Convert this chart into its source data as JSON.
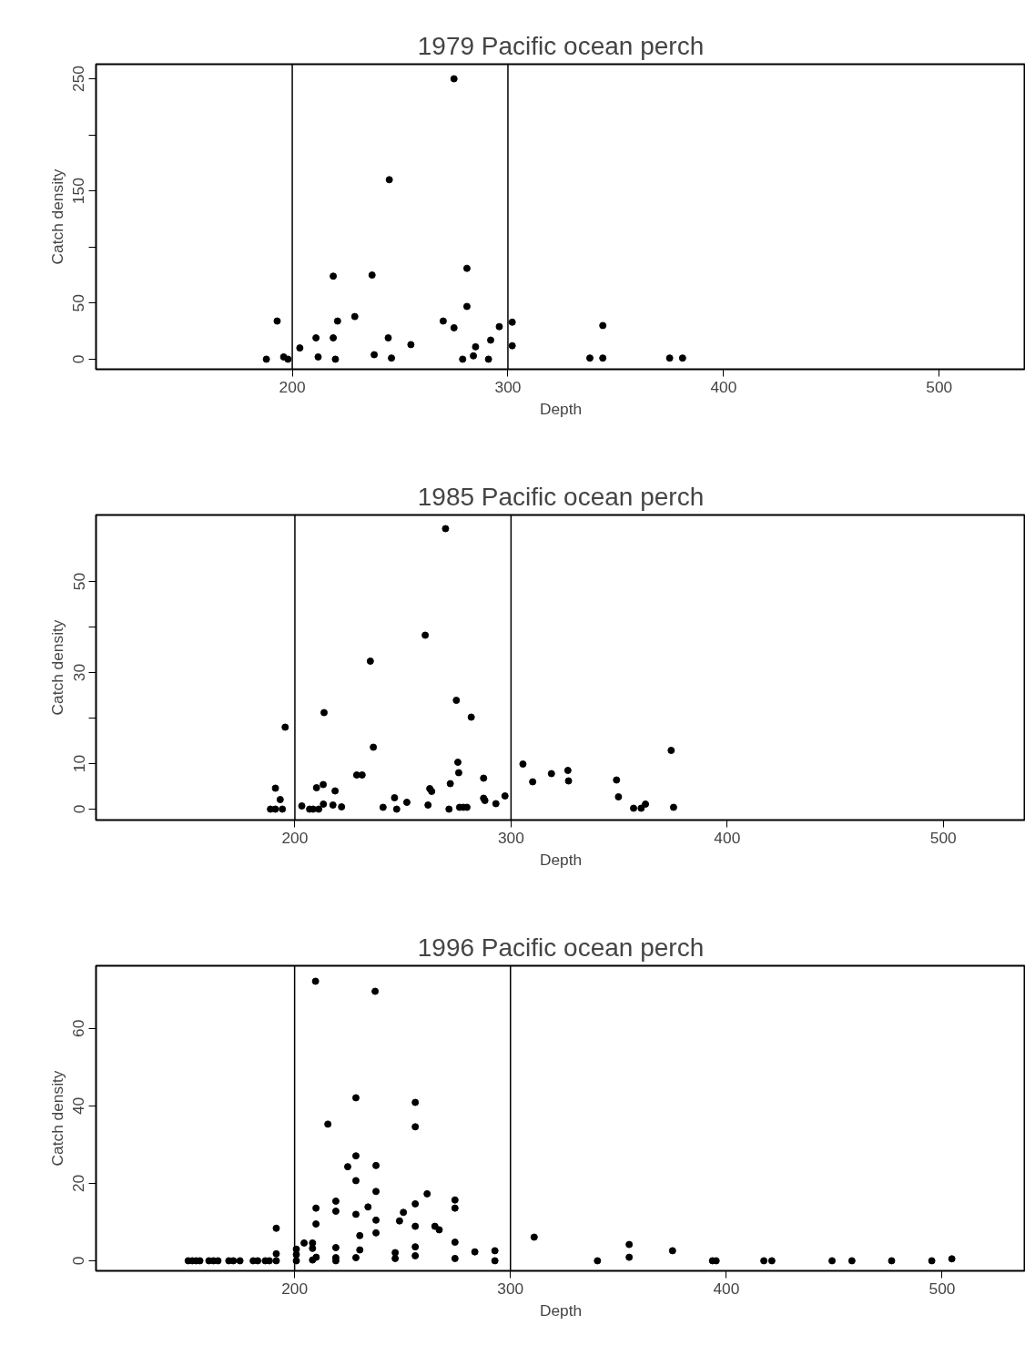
{
  "chart_data": [
    {
      "type": "scatter",
      "title": "1979 Pacific ocean perch",
      "xlabel": "Depth",
      "ylabel": "Catch density",
      "marker": "circle",
      "grid": false,
      "xlim": [
        109,
        540
      ],
      "ylim": [
        -9,
        263
      ],
      "xticks": [
        200,
        300,
        400,
        500
      ],
      "yticks": [
        0,
        50,
        {
          "value": 100,
          "label": null
        },
        150,
        {
          "value": 200,
          "label": null
        },
        250
      ],
      "ref_lines": [
        {
          "axis": "x",
          "value": 200,
          "color": "#000000"
        },
        {
          "axis": "x",
          "value": 300,
          "color": "#000000"
        }
      ],
      "series": [
        {
          "color": "#000000",
          "x": [
            188,
            193,
            196,
            198,
            203.5,
            211,
            212,
            219,
            219,
            220,
            221,
            229,
            237,
            238,
            244.5,
            245,
            246,
            255,
            270,
            275,
            275,
            279,
            281,
            281,
            284,
            285,
            291,
            292,
            296,
            302,
            302,
            338,
            344,
            344,
            375,
            381
          ],
          "values": [
            0,
            34,
            2,
            0,
            10,
            19,
            2,
            74,
            19,
            0,
            34,
            38,
            75,
            4,
            19,
            160,
            1,
            13,
            34,
            250,
            28,
            0,
            81,
            47,
            3,
            11,
            0,
            17,
            29,
            33,
            12,
            1,
            1,
            30,
            1,
            1
          ]
        }
      ]
    },
    {
      "type": "scatter",
      "title": "1985 Pacific ocean perch",
      "xlabel": "Depth",
      "ylabel": "Catch density",
      "marker": "circle",
      "grid": false,
      "xlim": [
        108,
        538
      ],
      "ylim": [
        -2.4,
        64.6
      ],
      "xticks": [
        200,
        300,
        400,
        500
      ],
      "yticks": [
        0,
        10,
        {
          "value": 20,
          "label": null
        },
        30,
        {
          "value": 40,
          "label": null
        },
        50
      ],
      "ref_lines": [
        {
          "axis": "x",
          "value": 200,
          "color": "#000000"
        },
        {
          "axis": "x",
          "value": 300,
          "color": "#000000"
        }
      ],
      "series": [
        {
          "color": "#000000",
          "x": [
            188.7,
            191,
            194.2,
            193.2,
            191,
            195.5,
            203.2,
            206.8,
            208.4,
            211,
            210,
            213.1,
            213.5,
            213.2,
            217.6,
            218.6,
            221.6,
            228.6,
            231.1,
            234.9,
            236.3,
            240.8,
            246.1,
            247.1,
            251.8,
            260.3,
            261.6,
            262.4,
            263.3,
            269.7,
            271.9,
            271.3,
            274.7,
            275.4,
            275.8,
            276.2,
            278,
            279.6,
            281.6,
            287.3,
            287.3,
            287.9,
            293,
            297.2,
            305.5,
            310,
            318.7,
            326.3,
            326.6,
            348.8,
            349.7,
            356.7,
            360.2,
            362.2,
            374.1,
            375.2
          ],
          "values": [
            0,
            0,
            0,
            2.1,
            4.6,
            18,
            0.7,
            0,
            0,
            0,
            4.7,
            5.4,
            21.2,
            1.1,
            0.9,
            4,
            0.5,
            7.5,
            7.5,
            32.5,
            13.6,
            0.4,
            2.5,
            0,
            1.5,
            38.2,
            0.9,
            4.5,
            3.9,
            61.6,
            5.6,
            0,
            23.9,
            10.3,
            8,
            0.4,
            0.4,
            0.4,
            20.2,
            6.8,
            2.4,
            1.9,
            1.2,
            2.9,
            9.9,
            6,
            7.8,
            8.5,
            6.2,
            6.4,
            2.7,
            0.2,
            0.2,
            1.1,
            12.9,
            0.4
          ]
        }
      ]
    },
    {
      "type": "scatter",
      "title": "1996 Pacific ocean perch",
      "xlabel": "Depth",
      "ylabel": "Catch density",
      "marker": "circle",
      "grid": false,
      "xlim": [
        108,
        538.6
      ],
      "ylim": [
        -2.6,
        76.2
      ],
      "xticks": [
        200,
        300,
        400,
        500
      ],
      "yticks": [
        0,
        20,
        40,
        60
      ],
      "ref_lines": [
        {
          "axis": "x",
          "value": 200,
          "color": "#000000"
        },
        {
          "axis": "x",
          "value": 300,
          "color": "#000000"
        }
      ],
      "series": [
        {
          "color": "#000000",
          "x": [
            150.7,
            152.6,
            154.4,
            156.1,
            160.3,
            162.4,
            164.5,
            169.5,
            171.6,
            174.7,
            180.8,
            182.9,
            186.4,
            188.3,
            191.5,
            191.5,
            191.5,
            200.8,
            200.8,
            200.8,
            204.4,
            208.3,
            208.3,
            208.3,
            210,
            209.7,
            209.9,
            209.9,
            215.4,
            219.1,
            219.1,
            219.1,
            219.1,
            219.1,
            224.6,
            228.4,
            228.4,
            228.4,
            228.4,
            228.4,
            230.2,
            230.2,
            234,
            237.3,
            237.7,
            237.7,
            237.7,
            237.7,
            246.6,
            246.6,
            248.6,
            250.4,
            255.9,
            255.9,
            255.9,
            255.9,
            255.9,
            255.9,
            261.4,
            265,
            267,
            274.3,
            274.3,
            274.3,
            274.3,
            283.5,
            292.8,
            292.8,
            311,
            340.3,
            355,
            355,
            375.1,
            393.6,
            395.3,
            417.4,
            421.1,
            449,
            458.2,
            476.6,
            495.2,
            504.5
          ],
          "values": [
            0,
            0,
            0,
            0,
            0,
            0,
            0,
            0,
            0,
            0,
            0,
            0,
            0,
            0,
            0,
            1.8,
            8.4,
            3,
            1.6,
            0,
            4.6,
            4.6,
            3.2,
            0.2,
            0.9,
            72.2,
            13.6,
            9.5,
            35.3,
            15.4,
            12.8,
            3.4,
            0.8,
            0,
            24.3,
            42.1,
            27.1,
            20.7,
            12,
            0.8,
            6.5,
            2.8,
            13.9,
            69.6,
            24.6,
            17.9,
            10.5,
            7.2,
            2.1,
            0.6,
            10.3,
            12.5,
            40.9,
            34.6,
            14.7,
            8.9,
            3.6,
            1.3,
            17.3,
            8.9,
            8,
            15.7,
            13.6,
            4.8,
            0.6,
            2.3,
            2.6,
            0,
            6.1,
            0,
            4.2,
            0.9,
            2.6,
            0,
            0,
            0,
            0,
            0,
            0,
            0,
            0,
            0.5
          ]
        }
      ]
    }
  ]
}
